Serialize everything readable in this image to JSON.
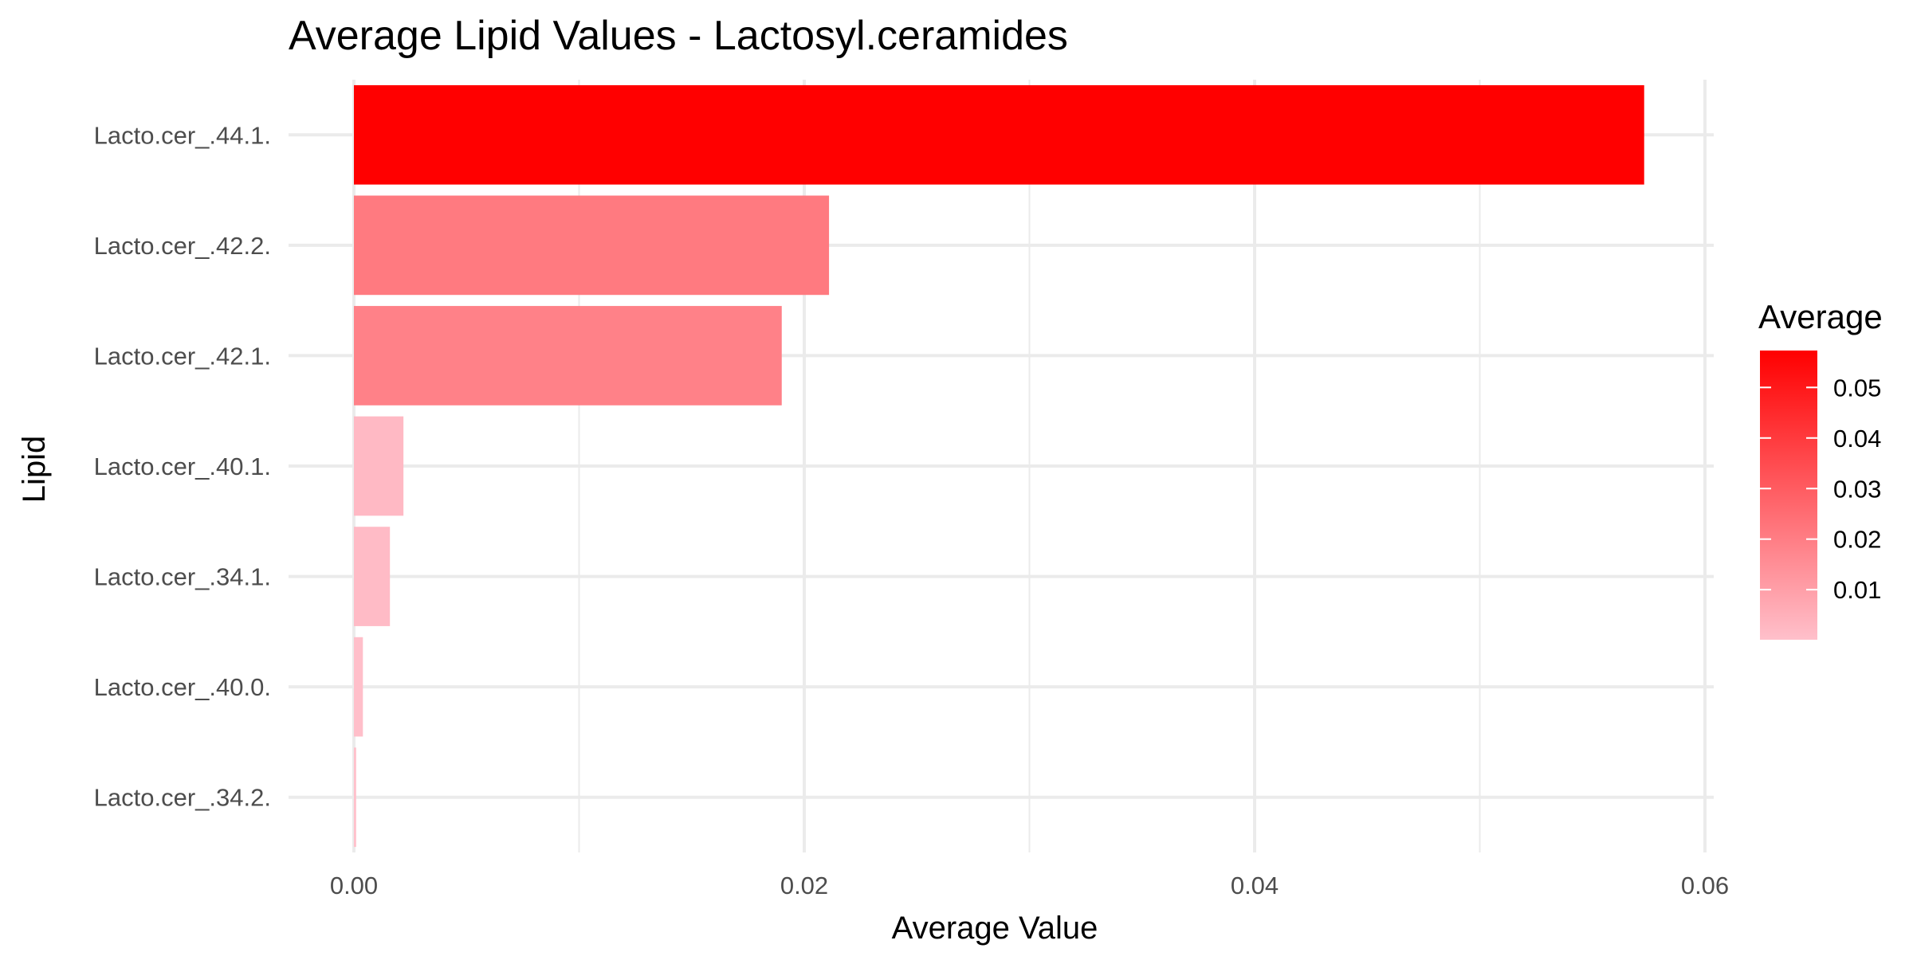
{
  "chart_data": {
    "type": "bar",
    "orientation": "horizontal",
    "title": "Average Lipid Values - Lactosyl.ceramides",
    "xlabel": "Average Value",
    "ylabel": "Lipid",
    "xlim": [
      0,
      0.06
    ],
    "x_ticks": [
      0,
      0.02,
      0.04,
      0.06
    ],
    "x_tick_labels": [
      "0.00",
      "0.02",
      "0.04",
      "0.06"
    ],
    "grid": true,
    "categories": [
      "Lacto.cer_.44.1.",
      "Lacto.cer_.42.2.",
      "Lacto.cer_.42.1.",
      "Lacto.cer_.40.1.",
      "Lacto.cer_.34.1.",
      "Lacto.cer_.40.0.",
      "Lacto.cer_.34.2."
    ],
    "values": [
      0.0573,
      0.0211,
      0.019,
      0.0022,
      0.0016,
      0.0004,
      0.0001
    ],
    "legend": {
      "title": "Average",
      "position": "right",
      "ticks": [
        0.01,
        0.02,
        0.03,
        0.04,
        0.05
      ],
      "tick_labels": [
        "0.01",
        "0.02",
        "0.03",
        "0.04",
        "0.05"
      ],
      "color_low": "#ffc0cb",
      "color_high": "#ff0000"
    }
  }
}
